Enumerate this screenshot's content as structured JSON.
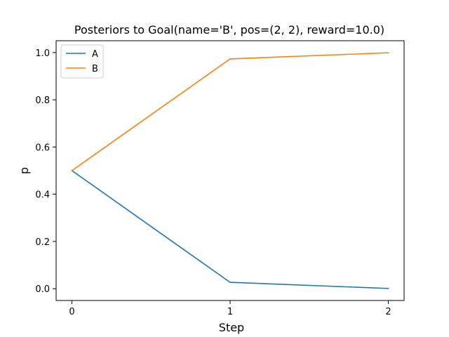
{
  "chart_data": {
    "type": "line",
    "title": "Posteriors to Goal(name='B', pos=(2, 2), reward=10.0)",
    "xlabel": "Step",
    "ylabel": "p",
    "x": [
      0,
      1,
      2
    ],
    "xticks": [
      "0",
      "1",
      "2"
    ],
    "yticks": [
      "0.0",
      "0.2",
      "0.4",
      "0.6",
      "0.8",
      "1.0"
    ],
    "xlim": [
      -0.1,
      2.1
    ],
    "ylim": [
      -0.05,
      1.05
    ],
    "grid": false,
    "legend_position": "top-left",
    "series": [
      {
        "name": "A",
        "color": "#1f77b4",
        "values": [
          0.5,
          0.027,
          0.001
        ]
      },
      {
        "name": "B",
        "color": "#ff7f0e",
        "values": [
          0.5,
          0.973,
          0.999
        ]
      }
    ]
  }
}
